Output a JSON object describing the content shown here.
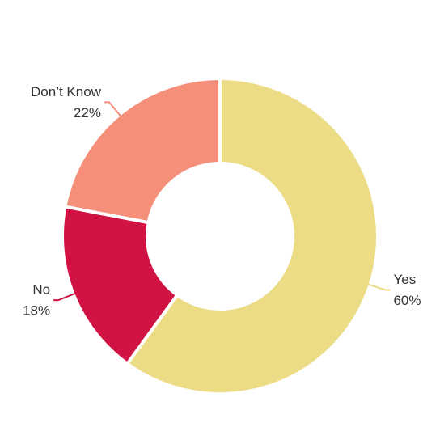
{
  "chart_data": {
    "type": "donut",
    "categories": [
      "Yes",
      "No",
      "Don’t Know"
    ],
    "values": [
      60,
      18,
      22
    ],
    "value_labels": [
      "60%",
      "18%",
      "22%"
    ],
    "colors": [
      "#ecdc85",
      "#d01342",
      "#f68f7a"
    ]
  }
}
